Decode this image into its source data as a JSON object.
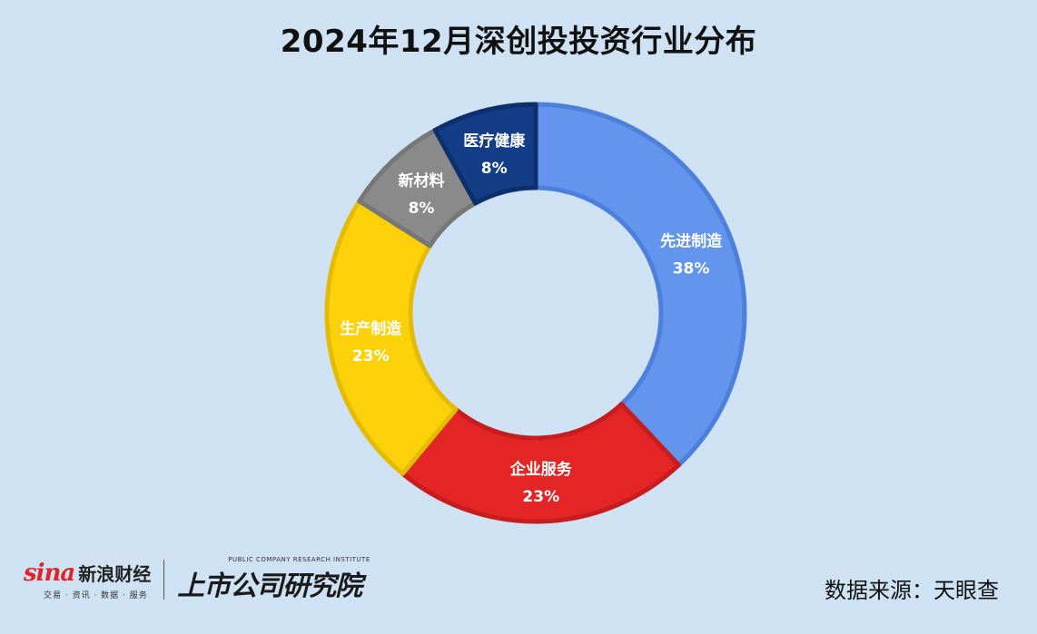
{
  "title": "2024年12月深创投投资行业分布",
  "chart_data": {
    "type": "pie",
    "donut": true,
    "slices": [
      {
        "label": "先进制造",
        "value": 38,
        "display": "38%",
        "color": "#6495ed"
      },
      {
        "label": "企业服务",
        "value": 23,
        "display": "23%",
        "color": "#e32526"
      },
      {
        "label": "生产制造",
        "value": 23,
        "display": "23%",
        "color": "#fcd10a"
      },
      {
        "label": "新材料",
        "value": 8,
        "display": "8%",
        "color": "#8a8a8a"
      },
      {
        "label": "医疗健康",
        "value": 8,
        "display": "8%",
        "color": "#133e87"
      }
    ]
  },
  "footer": {
    "sina_brand": "sina",
    "sina_name": "新浪财经",
    "sina_tagline": "交易 · 资讯 · 数据 · 服务",
    "institute_en": "PUBLIC COMPANY RESEARCH INSTITUTE",
    "institute_cn": "上市公司研究院",
    "source": "数据来源：天眼查"
  }
}
